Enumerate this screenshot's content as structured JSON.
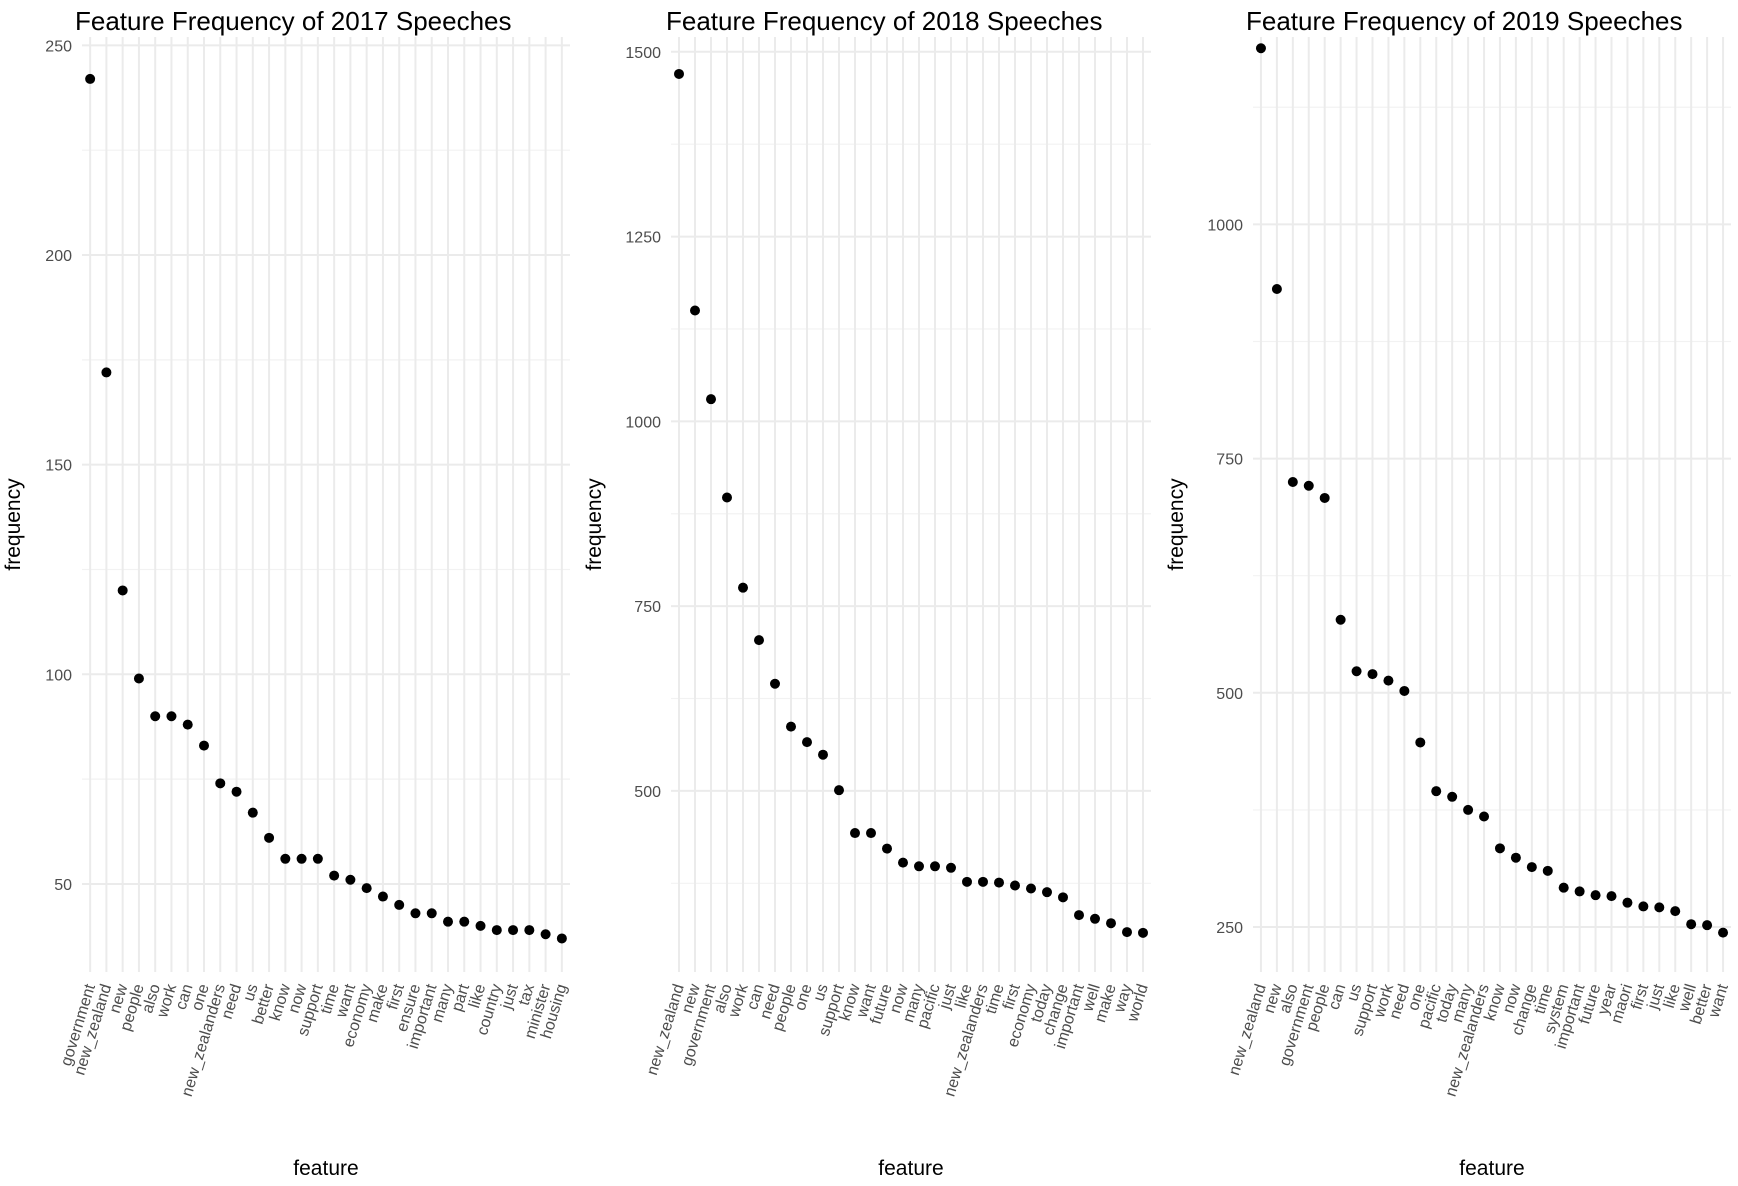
{
  "chart_data": [
    {
      "type": "scatter",
      "title": "Feature Frequency of 2017 Speeches",
      "xlabel": "feature",
      "ylabel": "frequency",
      "ylim": [
        29,
        252
      ],
      "yticks": [
        50,
        100,
        150,
        200,
        250
      ],
      "grid": true,
      "categories": [
        "government",
        "new_zealand",
        "new",
        "people",
        "also",
        "work",
        "can",
        "one",
        "new_zealanders",
        "need",
        "us",
        "better",
        "know",
        "now",
        "support",
        "time",
        "want",
        "economy",
        "make",
        "first",
        "ensure",
        "important",
        "many",
        "part",
        "like",
        "country",
        "just",
        "tax",
        "minister",
        "housing"
      ],
      "values": [
        242,
        172,
        120,
        99,
        90,
        90,
        88,
        83,
        74,
        72,
        67,
        61,
        56,
        56,
        56,
        52,
        51,
        49,
        47,
        45,
        43,
        43,
        41,
        41,
        40,
        39,
        39,
        39,
        38,
        37
      ]
    },
    {
      "type": "scatter",
      "title": "Feature Frequency of 2018 Speeches",
      "xlabel": "feature",
      "ylabel": "frequency",
      "ylim": [
        255,
        1520
      ],
      "yticks": [
        500,
        750,
        1000,
        1250,
        1500
      ],
      "grid": true,
      "categories": [
        "new_zealand",
        "new",
        "government",
        "also",
        "work",
        "can",
        "need",
        "people",
        "one",
        "us",
        "support",
        "know",
        "want",
        "future",
        "now",
        "many",
        "pacific",
        "just",
        "like",
        "new_zealanders",
        "time",
        "first",
        "economy",
        "today",
        "change",
        "important",
        "well",
        "make",
        "way",
        "world"
      ],
      "values": [
        1470,
        1150,
        1030,
        897,
        775,
        704,
        645,
        587,
        566,
        549,
        501,
        443,
        443,
        422,
        403,
        398,
        398,
        396,
        377,
        377,
        376,
        372,
        368,
        363,
        356,
        332,
        327,
        321,
        309,
        308
      ]
    },
    {
      "type": "scatter",
      "title": "Feature Frequency of 2019 Speeches",
      "xlabel": "feature",
      "ylabel": "frequency",
      "ylim": [
        202,
        1200
      ],
      "yticks": [
        250,
        500,
        750,
        1000
      ],
      "grid": true,
      "categories": [
        "new_zealand",
        "new",
        "also",
        "government",
        "people",
        "can",
        "us",
        "support",
        "work",
        "need",
        "one",
        "pacific",
        "today",
        "many",
        "new_zealanders",
        "know",
        "now",
        "change",
        "time",
        "system",
        "important",
        "future",
        "year",
        "maori",
        "first",
        "just",
        "like",
        "well",
        "better",
        "want"
      ],
      "values": [
        1188,
        931,
        725,
        721,
        708,
        578,
        523,
        520,
        513,
        502,
        447,
        395,
        389,
        375,
        368,
        334,
        324,
        314,
        310,
        292,
        288,
        284,
        283,
        276,
        272,
        271,
        267,
        253,
        252,
        244
      ]
    }
  ]
}
